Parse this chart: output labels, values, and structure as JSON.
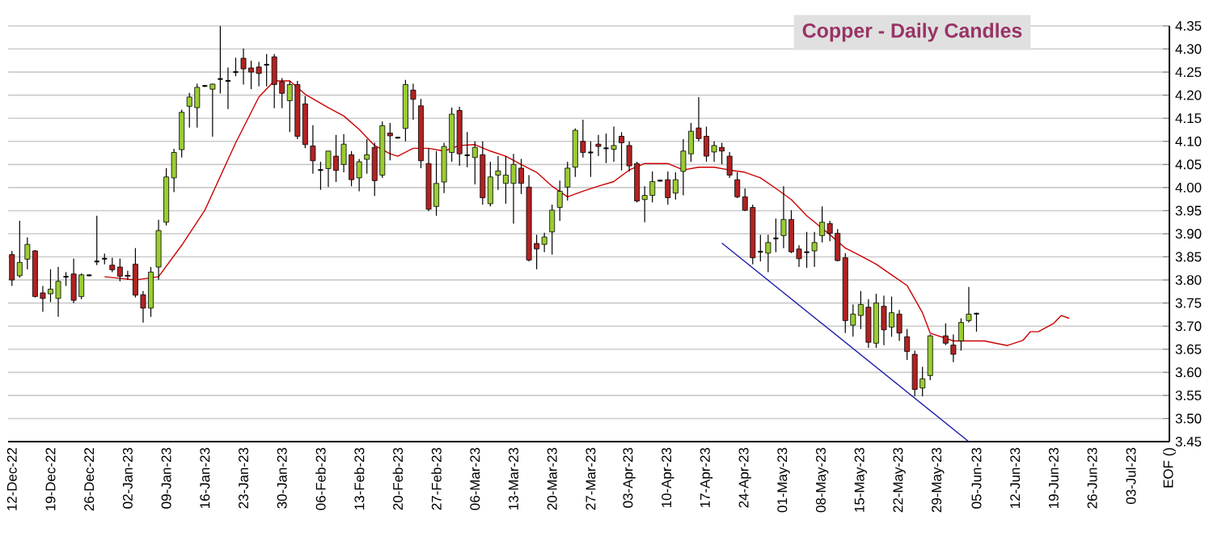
{
  "chart_data": {
    "type": "candlestick",
    "title": "Copper - Daily Candles",
    "categories": [
      "12-Dec-22",
      null,
      null,
      null,
      null,
      "19-Dec-22",
      null,
      null,
      null,
      null,
      "26-Dec-22",
      null,
      null,
      null,
      null,
      "02-Jan-23",
      null,
      null,
      null,
      null,
      "09-Jan-23",
      null,
      null,
      null,
      null,
      "16-Jan-23",
      null,
      null,
      null,
      null,
      "23-Jan-23",
      null,
      null,
      null,
      null,
      "30-Jan-23",
      null,
      null,
      null,
      null,
      "06-Feb-23",
      null,
      null,
      null,
      null,
      "13-Feb-23",
      null,
      null,
      null,
      null,
      "20-Feb-23",
      null,
      null,
      null,
      null,
      "27-Feb-23",
      null,
      null,
      null,
      null,
      "06-Mar-23",
      null,
      null,
      null,
      null,
      "13-Mar-23",
      null,
      null,
      null,
      null,
      "20-Mar-23",
      null,
      null,
      null,
      null,
      "27-Mar-23",
      null,
      null,
      null,
      null,
      "03-Apr-23",
      null,
      null,
      null,
      null,
      "10-Apr-23",
      null,
      null,
      null,
      null,
      "17-Apr-23",
      null,
      null,
      null,
      null,
      "24-Apr-23",
      null,
      null,
      null,
      null,
      "01-May-23",
      null,
      null,
      null,
      null,
      "08-May-23",
      null,
      null,
      null,
      null,
      "15-May-23",
      null,
      null,
      null,
      null,
      "22-May-23",
      null,
      null,
      null,
      null,
      "29-May-23",
      null,
      null,
      null,
      null,
      "05-Jun-23",
      null,
      null,
      null,
      null,
      "12-Jun-23",
      null,
      null,
      null,
      null,
      "19-Jun-23",
      null,
      null,
      null,
      null,
      "26-Jun-23",
      null,
      null,
      null,
      null,
      "03-Jul-23",
      null,
      null,
      null,
      null,
      "EOF ()"
    ],
    "ohlc": [
      [
        3.855,
        3.863,
        3.787,
        3.8
      ],
      [
        3.809,
        3.928,
        3.805,
        3.838
      ],
      [
        3.845,
        3.892,
        3.823,
        3.877
      ],
      [
        3.863,
        3.865,
        3.762,
        3.764
      ],
      [
        3.772,
        3.787,
        3.731,
        3.76
      ],
      [
        3.77,
        3.823,
        3.752,
        3.78
      ],
      [
        3.76,
        3.828,
        3.72,
        3.797
      ],
      [
        3.807,
        3.817,
        3.787,
        3.807
      ],
      [
        3.813,
        3.846,
        3.75,
        3.756
      ],
      [
        3.764,
        3.814,
        3.758,
        3.811
      ],
      [
        3.81,
        3.812,
        3.808,
        3.81
      ],
      [
        3.84,
        3.939,
        3.832,
        3.84
      ],
      [
        3.846,
        3.857,
        3.834,
        3.846
      ],
      [
        3.832,
        3.848,
        3.817,
        3.822
      ],
      [
        3.828,
        3.846,
        3.797,
        3.808
      ],
      [
        3.81,
        3.82,
        3.8,
        3.808
      ],
      [
        3.834,
        3.869,
        3.762,
        3.767
      ],
      [
        3.768,
        3.776,
        3.708,
        3.739
      ],
      [
        3.739,
        3.828,
        3.72,
        3.817
      ],
      [
        3.828,
        3.93,
        3.8,
        3.907
      ],
      [
        3.925,
        4.042,
        3.918,
        4.023
      ],
      [
        4.021,
        4.084,
        3.99,
        4.076
      ],
      [
        4.082,
        4.169,
        4.065,
        4.163
      ],
      [
        4.176,
        4.205,
        4.13,
        4.196
      ],
      [
        4.173,
        4.225,
        4.13,
        4.217
      ],
      [
        4.22,
        4.222,
        4.218,
        4.22
      ],
      [
        4.213,
        4.225,
        4.11,
        4.224
      ],
      [
        4.235,
        4.35,
        4.204,
        4.235
      ],
      [
        4.231,
        4.26,
        4.17,
        4.231
      ],
      [
        4.25,
        4.281,
        4.241,
        4.25
      ],
      [
        4.28,
        4.301,
        4.223,
        4.257
      ],
      [
        4.259,
        4.275,
        4.213,
        4.25
      ],
      [
        4.261,
        4.272,
        4.219,
        4.247
      ],
      [
        4.266,
        4.289,
        4.219,
        4.266
      ],
      [
        4.283,
        4.289,
        4.172,
        4.223
      ],
      [
        4.229,
        4.237,
        4.172,
        4.204
      ],
      [
        4.188,
        4.231,
        4.12,
        4.223
      ],
      [
        4.223,
        4.231,
        4.105,
        4.111
      ],
      [
        4.181,
        4.198,
        4.085,
        4.093
      ],
      [
        4.09,
        4.135,
        4.03,
        4.058
      ],
      [
        4.038,
        4.056,
        3.995,
        4.038
      ],
      [
        4.041,
        4.079,
        4.001,
        4.079
      ],
      [
        4.068,
        4.114,
        4.012,
        4.037
      ],
      [
        4.05,
        4.116,
        4.033,
        4.094
      ],
      [
        4.071,
        4.079,
        4.003,
        4.017
      ],
      [
        4.021,
        4.062,
        3.992,
        4.056
      ],
      [
        4.061,
        4.105,
        4.03,
        4.071
      ],
      [
        4.087,
        4.097,
        3.982,
        4.015
      ],
      [
        4.027,
        4.143,
        4.021,
        4.134
      ],
      [
        4.118,
        4.14,
        4.059,
        4.112
      ],
      [
        4.108,
        4.11,
        4.106,
        4.108
      ],
      [
        4.128,
        4.233,
        4.1,
        4.223
      ],
      [
        4.211,
        4.225,
        4.147,
        4.191
      ],
      [
        4.177,
        4.192,
        4.042,
        4.058
      ],
      [
        4.052,
        4.085,
        3.949,
        3.953
      ],
      [
        3.959,
        4.079,
        3.939,
        4.009
      ],
      [
        4.012,
        4.097,
        3.988,
        4.089
      ],
      [
        4.076,
        4.173,
        4.056,
        4.159
      ],
      [
        4.167,
        4.175,
        4.047,
        4.073
      ],
      [
        4.07,
        4.12,
        4.044,
        4.07
      ],
      [
        4.065,
        4.1,
        4.007,
        4.087
      ],
      [
        4.071,
        4.1,
        3.963,
        3.978
      ],
      [
        3.965,
        4.056,
        3.959,
        4.023
      ],
      [
        4.027,
        4.068,
        3.995,
        4.036
      ],
      [
        4.009,
        4.068,
        3.965,
        4.027
      ],
      [
        4.009,
        4.073,
        3.922,
        4.05
      ],
      [
        4.042,
        4.062,
        3.986,
        4.009
      ],
      [
        4.001,
        4.027,
        3.84,
        3.843
      ],
      [
        3.879,
        3.898,
        3.823,
        3.867
      ],
      [
        3.877,
        3.902,
        3.86,
        3.893
      ],
      [
        3.904,
        3.963,
        3.855,
        3.951
      ],
      [
        3.957,
        4.015,
        3.928,
        3.992
      ],
      [
        4.001,
        4.056,
        3.972,
        4.042
      ],
      [
        4.044,
        4.128,
        4.023,
        4.124
      ],
      [
        4.1,
        4.147,
        4.065,
        4.076
      ],
      [
        4.076,
        4.1,
        4.023,
        4.076
      ],
      [
        4.094,
        4.114,
        4.068,
        4.089
      ],
      [
        4.085,
        4.117,
        4.053,
        4.085
      ],
      [
        4.083,
        4.132,
        4.056,
        4.091
      ],
      [
        4.111,
        4.12,
        4.037,
        4.097
      ],
      [
        4.091,
        4.1,
        4.035,
        4.047
      ],
      [
        4.052,
        4.056,
        3.968,
        3.971
      ],
      [
        3.974,
        4.003,
        3.925,
        3.983
      ],
      [
        3.983,
        4.035,
        3.968,
        4.013
      ],
      [
        4.015,
        4.017,
        4.013,
        4.015
      ],
      [
        4.017,
        4.035,
        3.963,
        3.978
      ],
      [
        3.988,
        4.033,
        3.974,
        4.017
      ],
      [
        4.035,
        4.105,
        3.983,
        4.079
      ],
      [
        4.073,
        4.14,
        4.056,
        4.122
      ],
      [
        4.129,
        4.196,
        4.1,
        4.106
      ],
      [
        4.111,
        4.132,
        4.056,
        4.068
      ],
      [
        4.077,
        4.1,
        4.056,
        4.091
      ],
      [
        4.087,
        4.097,
        4.05,
        4.079
      ],
      [
        4.068,
        4.077,
        4.021,
        4.027
      ],
      [
        4.017,
        4.033,
        3.977,
        3.98
      ],
      [
        3.98,
        3.998,
        3.949,
        3.951
      ],
      [
        3.957,
        3.963,
        3.834,
        3.848
      ],
      [
        3.861,
        3.898,
        3.84,
        3.861
      ],
      [
        3.858,
        3.898,
        3.817,
        3.881
      ],
      [
        3.89,
        3.933,
        3.86,
        3.89
      ],
      [
        3.896,
        4.003,
        3.869,
        3.931
      ],
      [
        3.931,
        3.951,
        3.858,
        3.861
      ],
      [
        3.867,
        3.875,
        3.828,
        3.846
      ],
      [
        3.86,
        3.904,
        3.826,
        3.86
      ],
      [
        3.863,
        3.904,
        3.828,
        3.881
      ],
      [
        3.896,
        3.959,
        3.881,
        3.925
      ],
      [
        3.922,
        3.928,
        3.884,
        3.901
      ],
      [
        3.901,
        3.91,
        3.84,
        3.842
      ],
      [
        3.848,
        3.858,
        3.685,
        3.712
      ],
      [
        3.702,
        3.747,
        3.677,
        3.726
      ],
      [
        3.723,
        3.776,
        3.694,
        3.747
      ],
      [
        3.741,
        3.758,
        3.653,
        3.665
      ],
      [
        3.663,
        3.77,
        3.653,
        3.75
      ],
      [
        3.743,
        3.766,
        3.659,
        3.692
      ],
      [
        3.698,
        3.764,
        3.677,
        3.729
      ],
      [
        3.726,
        3.735,
        3.668,
        3.685
      ],
      [
        3.677,
        3.694,
        3.627,
        3.645
      ],
      [
        3.639,
        3.647,
        3.548,
        3.563
      ],
      [
        3.566,
        3.612,
        3.548,
        3.586
      ],
      [
        3.593,
        3.682,
        3.583,
        3.679
      ],
      null,
      [
        3.679,
        3.706,
        3.659,
        3.663
      ],
      [
        3.659,
        3.682,
        3.622,
        3.639
      ],
      [
        3.668,
        3.717,
        3.647,
        3.708
      ],
      [
        3.712,
        3.785,
        3.708,
        3.726
      ],
      [
        3.727,
        3.729,
        3.688,
        3.727
      ],
      null,
      null,
      null,
      null,
      null,
      null,
      null,
      null,
      null,
      null,
      null,
      null,
      null,
      null,
      null,
      null,
      null,
      null,
      null,
      null,
      null,
      null,
      null,
      null,
      null
    ],
    "colors": [
      "#b22222",
      "#9acd32",
      "#9acd32",
      "#b22222",
      "#b22222",
      "#9acd32",
      "#9acd32",
      "#000000",
      "#b22222",
      "#9acd32",
      "#000000",
      "#000000",
      "#000000",
      "#b22222",
      "#b22222",
      "#b22222",
      "#b22222",
      "#b22222",
      "#9acd32",
      "#9acd32",
      "#9acd32",
      "#9acd32",
      "#9acd32",
      "#9acd32",
      "#9acd32",
      "#000000",
      "#9acd32",
      "#000000",
      "#000000",
      "#000000",
      "#b22222",
      "#b22222",
      "#b22222",
      "#000000",
      "#b22222",
      "#b22222",
      "#9acd32",
      "#b22222",
      "#b22222",
      "#b22222",
      "#000000",
      "#9acd32",
      "#b22222",
      "#9acd32",
      "#b22222",
      "#9acd32",
      "#9acd32",
      "#b22222",
      "#9acd32",
      "#b22222",
      "#000000",
      "#9acd32",
      "#b22222",
      "#b22222",
      "#b22222",
      "#9acd32",
      "#9acd32",
      "#9acd32",
      "#b22222",
      "#000000",
      "#9acd32",
      "#b22222",
      "#9acd32",
      "#9acd32",
      "#9acd32",
      "#9acd32",
      "#b22222",
      "#b22222",
      "#b22222",
      "#9acd32",
      "#9acd32",
      "#9acd32",
      "#9acd32",
      "#9acd32",
      "#b22222",
      "#000000",
      "#b22222",
      "#000000",
      "#9acd32",
      "#b22222",
      "#b22222",
      "#b22222",
      "#9acd32",
      "#9acd32",
      "#000000",
      "#b22222",
      "#9acd32",
      "#9acd32",
      "#9acd32",
      "#b22222",
      "#b22222",
      "#9acd32",
      "#b22222",
      "#b22222",
      "#b22222",
      "#b22222",
      "#b22222",
      "#000000",
      "#9acd32",
      "#000000",
      "#9acd32",
      "#b22222",
      "#b22222",
      "#000000",
      "#9acd32",
      "#9acd32",
      "#b22222",
      "#b22222",
      "#b22222",
      "#9acd32",
      "#9acd32",
      "#b22222",
      "#9acd32",
      "#b22222",
      "#9acd32",
      "#b22222",
      "#b22222",
      "#b22222",
      "#9acd32",
      "#9acd32",
      null,
      "#b22222",
      "#b22222",
      "#9acd32",
      "#9acd32",
      "#000000",
      null,
      null,
      null,
      null,
      null,
      null,
      null,
      null,
      null,
      null,
      null,
      null,
      null,
      null,
      null,
      null,
      null,
      null,
      null,
      null,
      null,
      null,
      null,
      null,
      null
    ],
    "series": [
      {
        "type": "line",
        "color": "#cc0000",
        "values": [
          null,
          null,
          null,
          null,
          null,
          null,
          null,
          null,
          null,
          null,
          null,
          null,
          3.807,
          null,
          null,
          null,
          3.8,
          null,
          null,
          3.807,
          null,
          null,
          3.875,
          null,
          null,
          3.951,
          null,
          null,
          null,
          4.097,
          null,
          null,
          4.196,
          null,
          4.231,
          null,
          4.231,
          null,
          4.202,
          null,
          null,
          4.173,
          null,
          4.155,
          null,
          4.126,
          null,
          4.091,
          null,
          4.073,
          4.068,
          null,
          4.085,
          null,
          4.085,
          null,
          4.079,
          null,
          4.091,
          null,
          4.093,
          null,
          4.079,
          null,
          4.068,
          null,
          4.05,
          null,
          4.033,
          null,
          4.003,
          null,
          3.98,
          null,
          3.992,
          null,
          4.003,
          null,
          4.013,
          null,
          4.038,
          null,
          4.052,
          null,
          null,
          4.052,
          null,
          4.038,
          null,
          4.044,
          null,
          4.044,
          null,
          4.038,
          null,
          4.033,
          null,
          4.021,
          null,
          3.998,
          null,
          3.974,
          null,
          3.939,
          null,
          null,
          3.898,
          null,
          3.869,
          null,
          3.852,
          null,
          3.834,
          null,
          3.811,
          null,
          3.788,
          null,
          3.729,
          3.685,
          null,
          null,
          3.668,
          null,
          null,
          null,
          3.668,
          null,
          null,
          3.658,
          null,
          3.669,
          3.688,
          3.688,
          null,
          3.706,
          3.723,
          3.717,
          null,
          null,
          null,
          null,
          null,
          null,
          null,
          null,
          null,
          null,
          null,
          null,
          null
        ]
      },
      {
        "type": "line",
        "color": "#1a1aa6",
        "values": [
          null,
          null,
          null,
          null,
          null,
          null,
          null,
          null,
          null,
          null,
          null,
          null,
          null,
          null,
          null,
          null,
          null,
          null,
          null,
          null,
          null,
          null,
          null,
          null,
          null,
          null,
          null,
          null,
          null,
          null,
          null,
          null,
          null,
          null,
          null,
          null,
          null,
          null,
          null,
          null,
          null,
          null,
          null,
          null,
          null,
          null,
          null,
          null,
          null,
          null,
          null,
          null,
          null,
          null,
          null,
          null,
          null,
          null,
          null,
          null,
          null,
          null,
          null,
          null,
          null,
          null,
          null,
          null,
          null,
          null,
          null,
          null,
          null,
          null,
          null,
          null,
          null,
          null,
          null,
          null,
          null,
          null,
          null,
          null,
          null,
          null,
          null,
          null,
          null,
          null,
          null,
          null,
          3.88,
          null,
          null,
          null,
          null,
          null,
          null,
          null,
          null,
          null,
          null,
          null,
          null,
          null,
          null,
          null,
          null,
          null,
          null,
          null,
          null,
          null,
          null,
          null,
          null,
          null,
          null,
          null,
          null,
          null,
          null,
          null,
          3.45,
          null,
          null,
          null,
          null,
          null,
          null,
          null,
          null,
          null,
          null,
          null,
          null,
          null,
          null,
          null,
          null,
          null,
          null,
          null,
          null,
          null,
          null,
          null,
          null,
          null,
          null
        ]
      }
    ],
    "ylim": [
      3.45,
      4.35
    ],
    "yticks": [
      {
        "value": 3.45,
        "label": "3.45"
      },
      {
        "value": 3.5,
        "label": "3.50"
      },
      {
        "value": 3.55,
        "label": "3.55"
      },
      {
        "value": 3.6,
        "label": "3.60"
      },
      {
        "value": 3.65,
        "label": "3.65"
      },
      {
        "value": 3.7,
        "label": "3.70"
      },
      {
        "value": 3.75,
        "label": "3.75"
      },
      {
        "value": 3.8,
        "label": "3.80"
      },
      {
        "value": 3.85,
        "label": "3.85"
      },
      {
        "value": 3.9,
        "label": "3.90"
      },
      {
        "value": 3.95,
        "label": "3.95"
      },
      {
        "value": 4.0,
        "label": "4.00"
      },
      {
        "value": 4.05,
        "label": "4.05"
      },
      {
        "value": 4.1,
        "label": "4.10"
      },
      {
        "value": 4.15,
        "label": "4.15"
      },
      {
        "value": 4.2,
        "label": "4.20"
      },
      {
        "value": 4.25,
        "label": "4.25"
      },
      {
        "value": 4.3,
        "label": "4.30"
      },
      {
        "value": 4.35,
        "label": "4.35"
      }
    ],
    "grid": "y"
  }
}
